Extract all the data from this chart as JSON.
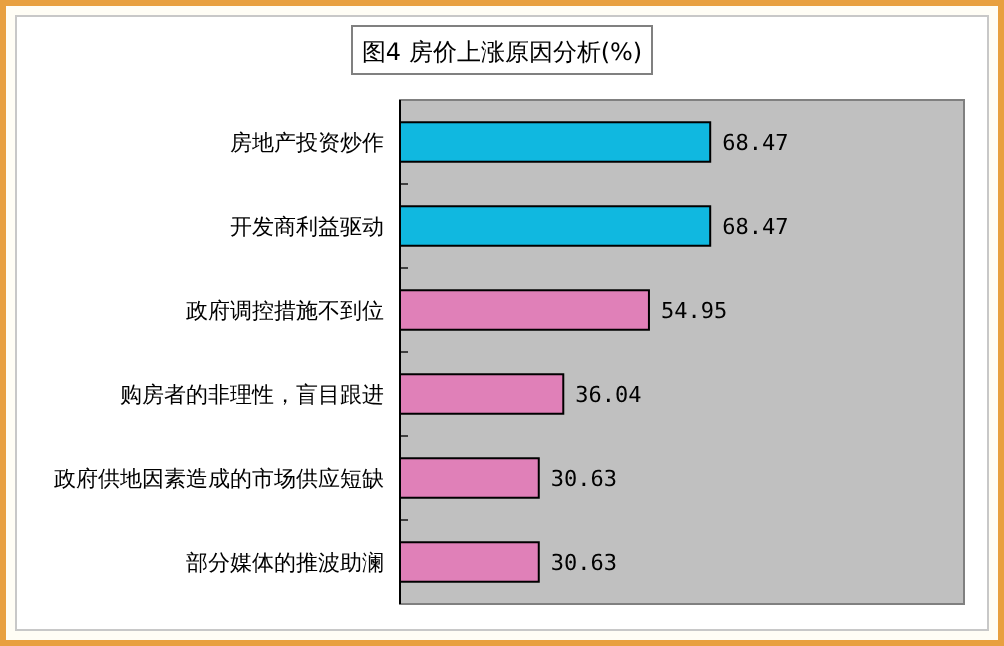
{
  "chart_data": {
    "type": "bar",
    "orientation": "horizontal",
    "title": "图4 房价上涨原因分析(%)",
    "categories": [
      "房地产投资炒作",
      "开发商利益驱动",
      "政府调控措施不到位",
      "购房者的非理性，盲目跟进",
      "政府供地因素造成的市场供应短缺",
      "部分媒体的推波助澜"
    ],
    "values": [
      68.47,
      68.47,
      54.95,
      36.04,
      30.63,
      30.63
    ],
    "colors": [
      "#10b8e0",
      "#10b8e0",
      "#e080b8",
      "#e080b8",
      "#e080b8",
      "#e080b8"
    ],
    "data_labels": true
  }
}
